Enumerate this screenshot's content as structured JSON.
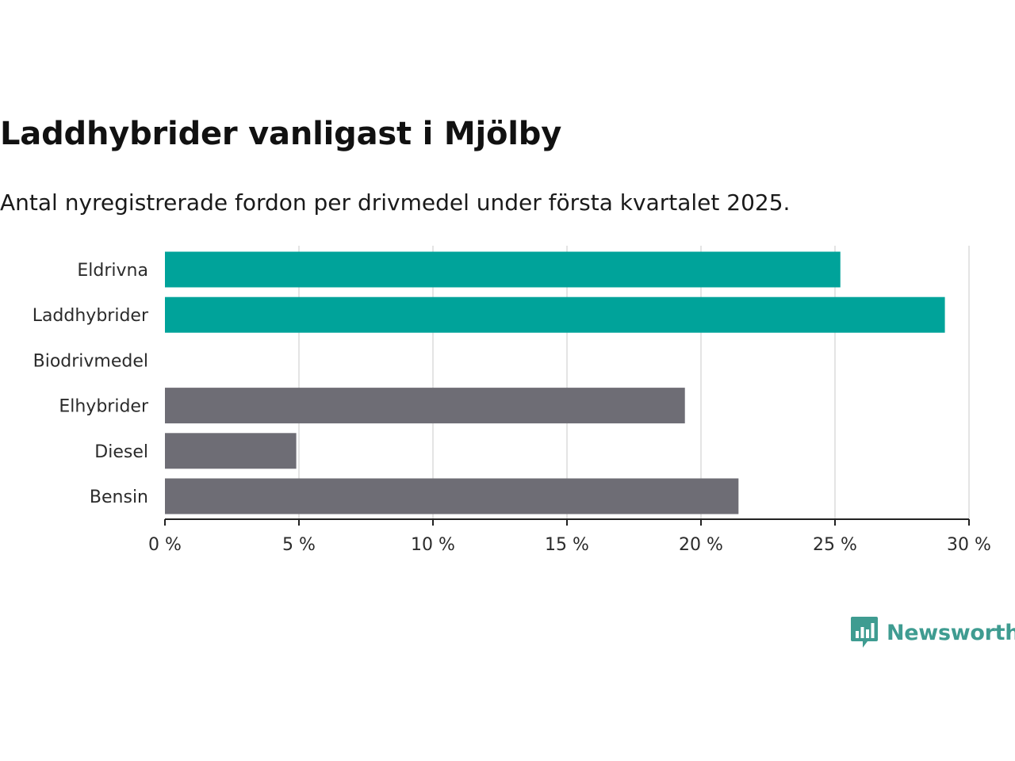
{
  "header": {
    "title": "Laddhybrider vanligast i Mjölby",
    "subtitle": "Antal nyregistrerade fordon per drivmedel under första kvartalet 2025."
  },
  "logo": {
    "text": "Newsworthy",
    "icon": "bar-chart-speech-bubble-icon",
    "color": "#3f9c91"
  },
  "colors": {
    "highlight": "#00a39a",
    "default": "#6e6d75",
    "grid": "#dcdcdc",
    "axis": "#222222"
  },
  "chart_data": {
    "type": "bar",
    "orientation": "horizontal",
    "title": "Laddhybrider vanligast i Mjölby",
    "subtitle": "Antal nyregistrerade fordon per drivmedel under första kvartalet 2025.",
    "categories": [
      "Eldrivna",
      "Laddhybrider",
      "Biodrivmedel",
      "Elhybrider",
      "Diesel",
      "Bensin"
    ],
    "values": [
      25.2,
      29.1,
      0,
      19.4,
      4.9,
      21.4
    ],
    "unit": "%",
    "highlighted": [
      true,
      true,
      false,
      false,
      false,
      false
    ],
    "xlim": [
      0,
      30
    ],
    "xticks": [
      0,
      5,
      10,
      15,
      20,
      25,
      30
    ],
    "tick_labels": [
      "0 %",
      "5 %",
      "10 %",
      "15 %",
      "20 %",
      "25 %",
      "30 %"
    ],
    "grid": true,
    "legend": "none"
  }
}
